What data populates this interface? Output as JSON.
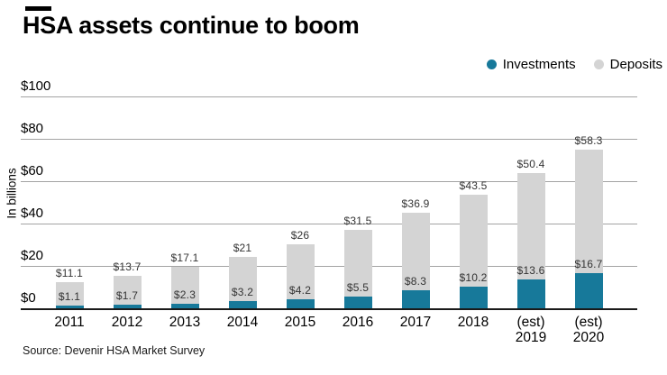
{
  "title": "HSA assets continue to boom",
  "source": "Source: Devenir HSA Market Survey",
  "legend": {
    "items": [
      {
        "label": "Investments",
        "color": "#17799a"
      },
      {
        "label": "Deposits",
        "color": "#d4d4d4"
      }
    ]
  },
  "colors": {
    "investments": "#17799a",
    "deposits": "#d4d4d4",
    "gridline": "#a3a3a3",
    "axis_line": "#1a1a1a"
  },
  "chart_data": {
    "type": "bar",
    "stacked": true,
    "title": "HSA assets continue to boom",
    "ylabel": "In billions",
    "ylim": [
      0,
      100
    ],
    "yticks": [
      0,
      20,
      40,
      60,
      80,
      100
    ],
    "ytick_labels": [
      "$0",
      "$20",
      "$40",
      "$60",
      "$80",
      "$100"
    ],
    "grid": true,
    "legend_position": "top-right",
    "categories": [
      "2011",
      "2012",
      "2013",
      "2014",
      "2015",
      "2016",
      "2017",
      "2018",
      "(est)\n2019",
      "(est)\n2020"
    ],
    "series": [
      {
        "name": "Investments",
        "color": "#17799a",
        "values": [
          1.1,
          1.7,
          2.3,
          3.2,
          4.2,
          5.5,
          8.3,
          10.2,
          13.6,
          16.7
        ],
        "labels": [
          "$1.1",
          "$1.7",
          "$2.3",
          "$3.2",
          "$4.2",
          "$5.5",
          "$8.3",
          "$10.2",
          "$13.6",
          "$16.7"
        ]
      },
      {
        "name": "Deposits",
        "color": "#d4d4d4",
        "values": [
          11.1,
          13.7,
          17.1,
          21,
          26,
          31.5,
          36.9,
          43.5,
          50.4,
          58.3
        ],
        "labels": [
          "$11.1",
          "$13.7",
          "$17.1",
          "$21",
          "$26",
          "$31.5",
          "$36.9",
          "$43.5",
          "$50.4",
          "$58.3"
        ]
      }
    ]
  }
}
